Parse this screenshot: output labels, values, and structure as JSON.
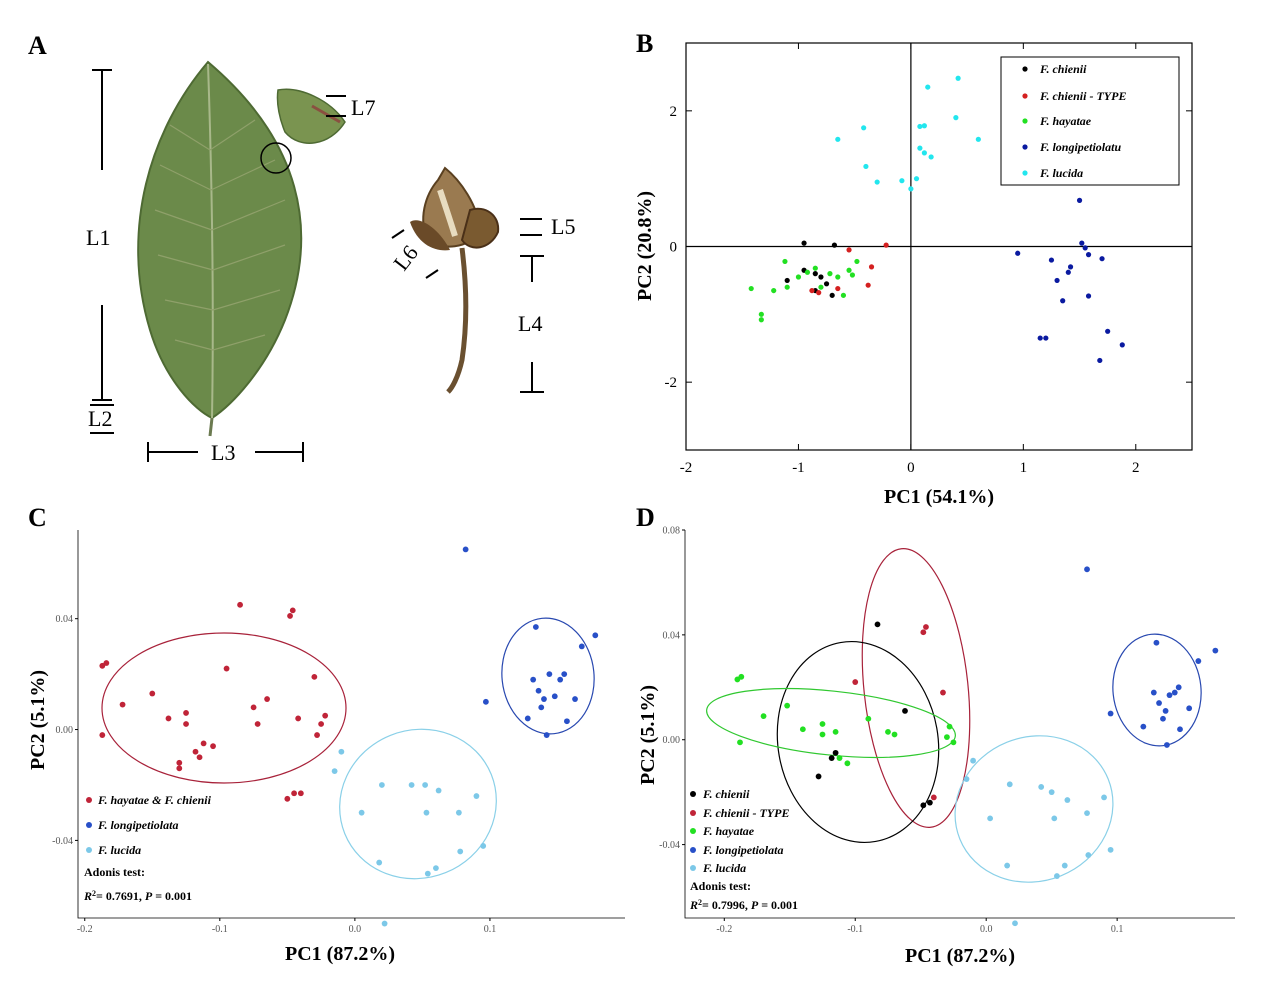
{
  "figure": {
    "panel_labels": [
      "A",
      "B",
      "C",
      "D"
    ],
    "colors": {
      "black": "#000000",
      "red": "#d42020",
      "green": "#22e022",
      "navy": "#0a1aa0",
      "cyan": "#22e6ee",
      "crimson": "#c02438",
      "royal": "#2850c8",
      "sky": "#7cc8e8",
      "ell_crimson": "#a8223a",
      "ell_royal": "#2848b0",
      "ell_sky": "#8ad0e8",
      "ell_green": "#30c830"
    }
  },
  "panel_a": {
    "label": "A",
    "leaf_labels": [
      "L1",
      "L2",
      "L3",
      "L7"
    ],
    "fruit_labels": [
      "L4",
      "L5",
      "L6"
    ],
    "leaf_color": "#6b8a4a",
    "fruit_color": "#8a6a40"
  },
  "chart_data": [
    {
      "panel": "B",
      "type": "scatter",
      "xlabel": "PC1 (54.1%)",
      "ylabel": "PC2 (20.8%)",
      "xlim": [
        -2,
        2.5
      ],
      "ylim": [
        -3,
        3
      ],
      "xticks": [
        -2,
        -1,
        0,
        1,
        2
      ],
      "yticks": [
        -2,
        0,
        2
      ],
      "xtick_labels": [
        "-2",
        "-1",
        "0",
        "1",
        "2"
      ],
      "ytick_labels": [
        "-2",
        "0",
        "2"
      ],
      "legend_position": "top-right",
      "series": [
        {
          "name": "F. chienii",
          "color": "#000000",
          "points": [
            [
              -0.95,
              0.05
            ],
            [
              -1.1,
              -0.5
            ],
            [
              -0.95,
              -0.35
            ],
            [
              -0.85,
              -0.4
            ],
            [
              -0.8,
              -0.45
            ],
            [
              -0.75,
              -0.55
            ],
            [
              -0.7,
              -0.72
            ],
            [
              -0.68,
              0.02
            ],
            [
              -0.85,
              -0.65
            ]
          ]
        },
        {
          "name": "F. chienii - TYPE",
          "color": "#d42020",
          "points": [
            [
              -0.55,
              -0.05
            ],
            [
              -0.22,
              0.02
            ],
            [
              -0.35,
              -0.3
            ],
            [
              -0.38,
              -0.57
            ],
            [
              -0.65,
              -0.62
            ],
            [
              -0.88,
              -0.65
            ],
            [
              -0.82,
              -0.68
            ]
          ]
        },
        {
          "name": "F. hayatae",
          "color": "#22e022",
          "points": [
            [
              -1.42,
              -0.62
            ],
            [
              -1.33,
              -1.0
            ],
            [
              -1.33,
              -1.08
            ],
            [
              -1.22,
              -0.65
            ],
            [
              -1.12,
              -0.22
            ],
            [
              -1.1,
              -0.6
            ],
            [
              -1.0,
              -0.45
            ],
            [
              -0.92,
              -0.38
            ],
            [
              -0.85,
              -0.32
            ],
            [
              -0.8,
              -0.6
            ],
            [
              -0.72,
              -0.4
            ],
            [
              -0.65,
              -0.45
            ],
            [
              -0.6,
              -0.72
            ],
            [
              -0.55,
              -0.35
            ],
            [
              -0.52,
              -0.42
            ],
            [
              -0.48,
              -0.22
            ]
          ]
        },
        {
          "name": "F. longipetiolatu",
          "color": "#0a1aa0",
          "points": [
            [
              0.95,
              -0.1
            ],
            [
              1.25,
              -0.2
            ],
            [
              1.3,
              -0.5
            ],
            [
              1.35,
              -0.8
            ],
            [
              1.15,
              -1.35
            ],
            [
              1.2,
              -1.35
            ],
            [
              1.4,
              -0.38
            ],
            [
              1.42,
              -0.3
            ],
            [
              1.5,
              0.68
            ],
            [
              1.52,
              0.05
            ],
            [
              1.55,
              -0.02
            ],
            [
              1.58,
              -0.12
            ],
            [
              1.58,
              -0.73
            ],
            [
              1.68,
              -1.68
            ],
            [
              1.7,
              -0.18
            ],
            [
              1.75,
              -1.25
            ],
            [
              1.88,
              -1.45
            ]
          ]
        },
        {
          "name": "F. lucida",
          "color": "#22e6ee",
          "points": [
            [
              -0.65,
              1.58
            ],
            [
              -0.42,
              1.75
            ],
            [
              -0.4,
              1.18
            ],
            [
              -0.3,
              0.95
            ],
            [
              -0.08,
              0.97
            ],
            [
              0.0,
              0.85
            ],
            [
              0.05,
              1.0
            ],
            [
              0.08,
              1.45
            ],
            [
              0.08,
              1.77
            ],
            [
              0.12,
              1.78
            ],
            [
              0.12,
              1.38
            ],
            [
              0.15,
              2.35
            ],
            [
              0.18,
              1.32
            ],
            [
              0.4,
              1.9
            ],
            [
              0.42,
              2.48
            ],
            [
              0.6,
              1.58
            ]
          ]
        }
      ]
    },
    {
      "panel": "C",
      "type": "scatter",
      "xlabel": "PC1 (87.2%)",
      "ylabel": "PC2 (5.1%)",
      "xlim": [
        -0.205,
        0.2
      ],
      "ylim": [
        -0.068,
        0.072
      ],
      "xticks": [
        -0.2,
        -0.1,
        0.0,
        0.1
      ],
      "yticks": [
        -0.04,
        0.0,
        0.04
      ],
      "xtick_labels": [
        "-0.2",
        "-0.1",
        "0.0",
        "0.1"
      ],
      "ytick_labels": [
        "-0.04",
        "0.00",
        "0.04"
      ],
      "legend_position": "bottom-left",
      "annotation": {
        "title": "Adonis test:",
        "r2": "= 0.7691, ",
        "p": " = 0.001"
      },
      "series": [
        {
          "name": "F. hayatae & F. chienii",
          "color": "#c02438",
          "points": [
            [
              -0.187,
              0.023
            ],
            [
              -0.184,
              0.024
            ],
            [
              -0.187,
              -0.002
            ],
            [
              -0.172,
              0.009
            ],
            [
              -0.15,
              0.013
            ],
            [
              -0.138,
              0.004
            ],
            [
              -0.125,
              0.006
            ],
            [
              -0.125,
              0.002
            ],
            [
              -0.13,
              -0.012
            ],
            [
              -0.13,
              -0.014
            ],
            [
              -0.118,
              -0.008
            ],
            [
              -0.115,
              -0.01
            ],
            [
              -0.112,
              -0.005
            ],
            [
              -0.105,
              -0.006
            ],
            [
              -0.095,
              0.022
            ],
            [
              -0.085,
              0.045
            ],
            [
              -0.075,
              0.008
            ],
            [
              -0.072,
              0.002
            ],
            [
              -0.065,
              0.011
            ],
            [
              -0.048,
              0.041
            ],
            [
              -0.046,
              0.043
            ],
            [
              -0.042,
              0.004
            ],
            [
              -0.05,
              -0.025
            ],
            [
              -0.045,
              -0.023
            ],
            [
              -0.04,
              -0.023
            ],
            [
              -0.03,
              0.019
            ],
            [
              -0.028,
              -0.002
            ],
            [
              -0.025,
              0.002
            ],
            [
              -0.022,
              0.005
            ]
          ]
        },
        {
          "name": "F. longipetiolata",
          "color": "#2850c8",
          "points": [
            [
              0.082,
              0.065
            ],
            [
              0.097,
              0.01
            ],
            [
              0.128,
              0.004
            ],
            [
              0.132,
              0.018
            ],
            [
              0.134,
              0.037
            ],
            [
              0.136,
              0.014
            ],
            [
              0.138,
              0.008
            ],
            [
              0.14,
              0.011
            ],
            [
              0.142,
              -0.002
            ],
            [
              0.144,
              0.02
            ],
            [
              0.148,
              0.012
            ],
            [
              0.152,
              0.018
            ],
            [
              0.155,
              0.02
            ],
            [
              0.157,
              0.003
            ],
            [
              0.163,
              0.011
            ],
            [
              0.168,
              0.03
            ],
            [
              0.178,
              0.034
            ]
          ]
        },
        {
          "name": "F. lucida",
          "color": "#7cc8e8",
          "points": [
            [
              -0.015,
              -0.015
            ],
            [
              -0.01,
              -0.008
            ],
            [
              0.005,
              -0.03
            ],
            [
              0.02,
              -0.02
            ],
            [
              0.018,
              -0.048
            ],
            [
              0.022,
              -0.07
            ],
            [
              0.042,
              -0.02
            ],
            [
              0.052,
              -0.02
            ],
            [
              0.053,
              -0.03
            ],
            [
              0.054,
              -0.052
            ],
            [
              0.06,
              -0.05
            ],
            [
              0.062,
              -0.022
            ],
            [
              0.077,
              -0.03
            ],
            [
              0.078,
              -0.044
            ],
            [
              0.09,
              -0.024
            ],
            [
              0.095,
              -0.042
            ]
          ]
        }
      ]
    },
    {
      "panel": "D",
      "type": "scatter",
      "xlabel": "PC1 (87.2%)",
      "ylabel": "PC2 (5.1%)",
      "xlim": [
        -0.23,
        0.19
      ],
      "ylim": [
        -0.068,
        0.08
      ],
      "xticks": [
        -0.2,
        -0.1,
        0.0,
        0.1
      ],
      "yticks": [
        -0.04,
        0.0,
        0.04,
        0.08
      ],
      "xtick_labels": [
        "-0.2",
        "-0.1",
        "0.0",
        "0.1"
      ],
      "ytick_labels": [
        "-0.04",
        "0.00",
        "0.04",
        "0.08"
      ],
      "legend_position": "bottom-left",
      "annotation": {
        "title": "Adonis test:",
        "r2": "= 0.7996, ",
        "p": " = 0.001"
      },
      "series": [
        {
          "name": "F. chienii",
          "color": "#000000",
          "points": [
            [
              -0.128,
              -0.014
            ],
            [
              -0.118,
              -0.007
            ],
            [
              -0.115,
              -0.005
            ],
            [
              -0.083,
              0.044
            ],
            [
              -0.062,
              0.011
            ],
            [
              -0.048,
              -0.025
            ],
            [
              -0.043,
              -0.024
            ]
          ]
        },
        {
          "name": "F. chienii - TYPE",
          "color": "#c02438",
          "points": [
            [
              -0.1,
              0.022
            ],
            [
              -0.048,
              0.041
            ],
            [
              -0.046,
              0.043
            ],
            [
              -0.033,
              0.018
            ],
            [
              -0.04,
              -0.022
            ]
          ]
        },
        {
          "name": "F. hayatae",
          "color": "#22e022",
          "points": [
            [
              -0.19,
              0.023
            ],
            [
              -0.187,
              0.024
            ],
            [
              -0.188,
              -0.001
            ],
            [
              -0.17,
              0.009
            ],
            [
              -0.152,
              0.013
            ],
            [
              -0.14,
              0.004
            ],
            [
              -0.125,
              0.006
            ],
            [
              -0.125,
              0.002
            ],
            [
              -0.115,
              0.003
            ],
            [
              -0.112,
              -0.007
            ],
            [
              -0.106,
              -0.009
            ],
            [
              -0.09,
              0.008
            ],
            [
              -0.075,
              0.003
            ],
            [
              -0.07,
              0.002
            ],
            [
              -0.03,
              0.001
            ],
            [
              -0.028,
              0.005
            ],
            [
              -0.025,
              -0.001
            ]
          ]
        },
        {
          "name": "F. longipetiolata",
          "color": "#2850c8",
          "points": [
            [
              0.077,
              0.065
            ],
            [
              0.095,
              0.01
            ],
            [
              0.12,
              0.005
            ],
            [
              0.128,
              0.018
            ],
            [
              0.13,
              0.037
            ],
            [
              0.132,
              0.014
            ],
            [
              0.135,
              0.008
            ],
            [
              0.137,
              0.011
            ],
            [
              0.138,
              -0.002
            ],
            [
              0.14,
              0.017
            ],
            [
              0.144,
              0.018
            ],
            [
              0.147,
              0.02
            ],
            [
              0.148,
              0.004
            ],
            [
              0.155,
              0.012
            ],
            [
              0.162,
              0.03
            ],
            [
              0.175,
              0.034
            ]
          ]
        },
        {
          "name": "F. lucida",
          "color": "#7cc8e8",
          "points": [
            [
              -0.015,
              -0.015
            ],
            [
              -0.01,
              -0.008
            ],
            [
              0.003,
              -0.03
            ],
            [
              0.018,
              -0.017
            ],
            [
              0.016,
              -0.048
            ],
            [
              0.022,
              -0.07
            ],
            [
              0.042,
              -0.018
            ],
            [
              0.05,
              -0.02
            ],
            [
              0.052,
              -0.03
            ],
            [
              0.054,
              -0.052
            ],
            [
              0.06,
              -0.048
            ],
            [
              0.062,
              -0.023
            ],
            [
              0.077,
              -0.028
            ],
            [
              0.078,
              -0.044
            ],
            [
              0.09,
              -0.022
            ],
            [
              0.095,
              -0.042
            ]
          ]
        }
      ]
    }
  ]
}
